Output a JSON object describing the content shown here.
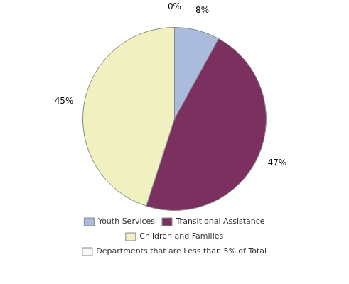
{
  "chart_data": {
    "type": "pie",
    "categories": [
      "Youth Services",
      "Transitional Assistance",
      "Children and Families",
      "Departments that are Less than 5% of Total"
    ],
    "values": [
      8,
      47,
      45,
      0.001
    ],
    "value_labels": [
      "8%",
      "47%",
      "45%",
      "0%"
    ],
    "colors": [
      "#aabbdd",
      "#7b3060",
      "#f0f0c0",
      "#f8f8f8"
    ],
    "data_labels": true,
    "legend": "bottom"
  }
}
